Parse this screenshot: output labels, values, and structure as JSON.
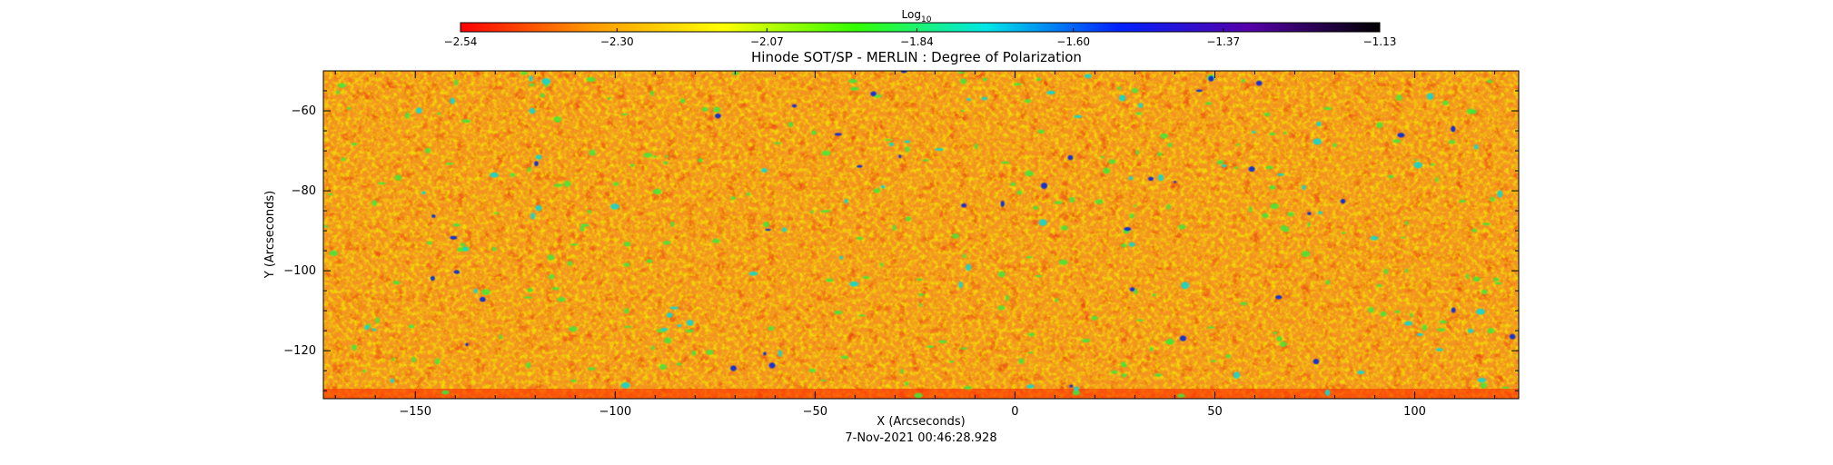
{
  "chart_data": {
    "type": "heatmap",
    "title": "Hinode SOT/SP - MERLIN : Degree of Polarization",
    "xlabel": "X (Arcseconds)",
    "ylabel": "Y (Arcseconds)",
    "footer": "7-Nov-2021 00:46:28.928",
    "xlim": [
      -173,
      126
    ],
    "ylim": [
      -132,
      -50
    ],
    "x_ticks": [
      -150,
      -100,
      -50,
      0,
      50,
      100
    ],
    "x_tick_labels": [
      "−150",
      "−100",
      "−50",
      "0",
      "50",
      "100"
    ],
    "y_ticks": [
      -60,
      -80,
      -100,
      -120
    ],
    "y_tick_labels": [
      "−60",
      "−80",
      "−100",
      "−120"
    ],
    "colorbar": {
      "label": "Log",
      "label_subscript": "10",
      "range": [
        -2.54,
        -1.13
      ],
      "ticks": [
        -2.54,
        -2.3,
        -2.07,
        -1.84,
        -1.6,
        -1.37,
        -1.13
      ],
      "tick_labels": [
        "−2.54",
        "−2.30",
        "−2.07",
        "−1.84",
        "−1.60",
        "−1.37",
        "−1.13"
      ],
      "stops": [
        "#ff0000",
        "#ff9900",
        "#ffff00",
        "#33ff00",
        "#00e6e6",
        "#0022ff",
        "#5500aa",
        "#000000"
      ]
    }
  }
}
